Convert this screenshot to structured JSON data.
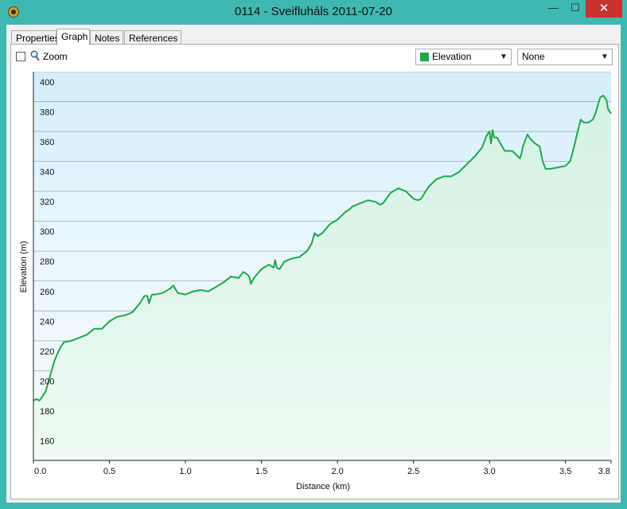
{
  "window": {
    "title": "0114 - Sveifluháls 2011-07-20",
    "min_label": "—",
    "max_label": "☐",
    "close_label": "✕"
  },
  "tabs": [
    {
      "label": "Properties",
      "active": false
    },
    {
      "label": "Graph",
      "active": true
    },
    {
      "label": "Notes",
      "active": false
    },
    {
      "label": "References",
      "active": false
    }
  ],
  "toolbar": {
    "zoom_label": "Zoom",
    "zoom_checked": false,
    "series_select": {
      "value": "Elevation",
      "color": "#1fa84a"
    },
    "compare_select": {
      "value": "None"
    }
  },
  "chart_data": {
    "type": "area",
    "xlabel": "Distance  (km)",
    "ylabel": "Elevation (m)",
    "xlim": [
      0,
      3.8
    ],
    "ylim": [
      140,
      400
    ],
    "xticks": [
      "0.0",
      "0.5",
      "1.0",
      "1.5",
      "2.0",
      "2.5",
      "3.0",
      "3.5",
      "3.8"
    ],
    "xtick_values": [
      0,
      0.5,
      1.0,
      1.5,
      2.0,
      2.5,
      3.0,
      3.5,
      3.8
    ],
    "yticks": [
      160,
      180,
      200,
      220,
      240,
      260,
      280,
      300,
      320,
      340,
      360,
      380,
      400
    ],
    "grid": true,
    "line_color": "#1fa84a",
    "series": [
      {
        "x": [
          0.0,
          0.02,
          0.04,
          0.06,
          0.08,
          0.1,
          0.12,
          0.14,
          0.16,
          0.18,
          0.2,
          0.25,
          0.3,
          0.35,
          0.4,
          0.45,
          0.5,
          0.55,
          0.6,
          0.65,
          0.7,
          0.73,
          0.75,
          0.76,
          0.78,
          0.8,
          0.85,
          0.9,
          0.92,
          0.95,
          1.0,
          1.05,
          1.1,
          1.15,
          1.2,
          1.25,
          1.3,
          1.35,
          1.38,
          1.4,
          1.42,
          1.43,
          1.45,
          1.5,
          1.55,
          1.58,
          1.59,
          1.6,
          1.62,
          1.65,
          1.7,
          1.75,
          1.8,
          1.83,
          1.85,
          1.87,
          1.9,
          1.95,
          2.0,
          2.05,
          2.08,
          2.1,
          2.15,
          2.2,
          2.25,
          2.28,
          2.3,
          2.35,
          2.4,
          2.45,
          2.5,
          2.53,
          2.55,
          2.6,
          2.65,
          2.7,
          2.75,
          2.8,
          2.85,
          2.9,
          2.95,
          2.98,
          3.0,
          3.01,
          3.02,
          3.03,
          3.05,
          3.1,
          3.15,
          3.18,
          3.2,
          3.21,
          3.22,
          3.25,
          3.27,
          3.3,
          3.33,
          3.35,
          3.37,
          3.4,
          3.45,
          3.5,
          3.53,
          3.55,
          3.58,
          3.6,
          3.62,
          3.65,
          3.68,
          3.7,
          3.72,
          3.73,
          3.75,
          3.77,
          3.78,
          3.8
        ],
        "y": [
          180,
          181,
          180,
          183,
          186,
          193,
          200,
          207,
          212,
          216,
          219,
          220,
          222,
          224,
          228,
          228,
          233,
          236,
          237,
          239,
          245,
          250,
          250,
          245,
          251,
          251,
          252,
          255,
          257,
          252,
          251,
          253,
          254,
          253,
          256,
          259,
          263,
          262,
          266,
          265,
          263,
          258,
          262,
          268,
          271,
          269,
          274,
          269,
          268,
          273,
          275,
          276,
          280,
          285,
          292,
          290,
          292,
          298,
          301,
          306,
          308,
          310,
          312,
          314,
          313,
          311,
          312,
          319,
          322,
          320,
          315,
          314,
          315,
          323,
          328,
          330,
          330,
          333,
          338,
          343,
          349,
          357,
          360,
          352,
          361,
          356,
          356,
          347,
          347,
          344,
          342,
          345,
          350,
          358,
          355,
          352,
          350,
          340,
          335,
          335,
          336,
          337,
          340,
          347,
          360,
          368,
          366,
          366,
          368,
          373,
          380,
          383,
          384,
          381,
          375,
          372
        ]
      }
    ]
  }
}
